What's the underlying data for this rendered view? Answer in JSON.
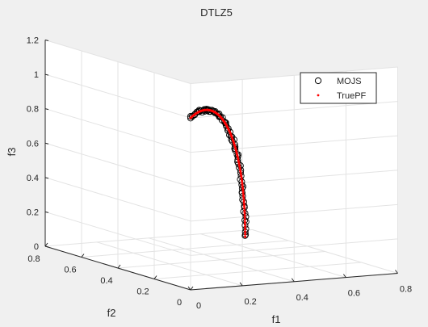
{
  "chart_data": {
    "type": "scatter",
    "projection": "3d",
    "title": "DTLZ5",
    "xlabel": "f1",
    "ylabel": "f2",
    "zlabel": "f3",
    "xlim": [
      0,
      0.8
    ],
    "ylim": [
      0,
      0.8
    ],
    "zlim": [
      0,
      1.2
    ],
    "xticks": [
      "0",
      "0.2",
      "0.4",
      "0.6",
      "0.8"
    ],
    "yticks": [
      "0",
      "0.2",
      "0.4",
      "0.6",
      "0.8"
    ],
    "zticks": [
      "0",
      "0.2",
      "0.4",
      "0.6",
      "0.8",
      "1",
      "1.2"
    ],
    "grid": true,
    "legend_position": "top-right",
    "series": [
      {
        "name": "MOJS",
        "marker": "open-circle",
        "color": "#000000"
      },
      {
        "name": "TruePF",
        "marker": "dot",
        "color": "#ff0000"
      }
    ],
    "front_curve": "f1 = f2 = sin(t)/sqrt(2), f3 = cos(t), t from 0 to 90 degrees"
  }
}
